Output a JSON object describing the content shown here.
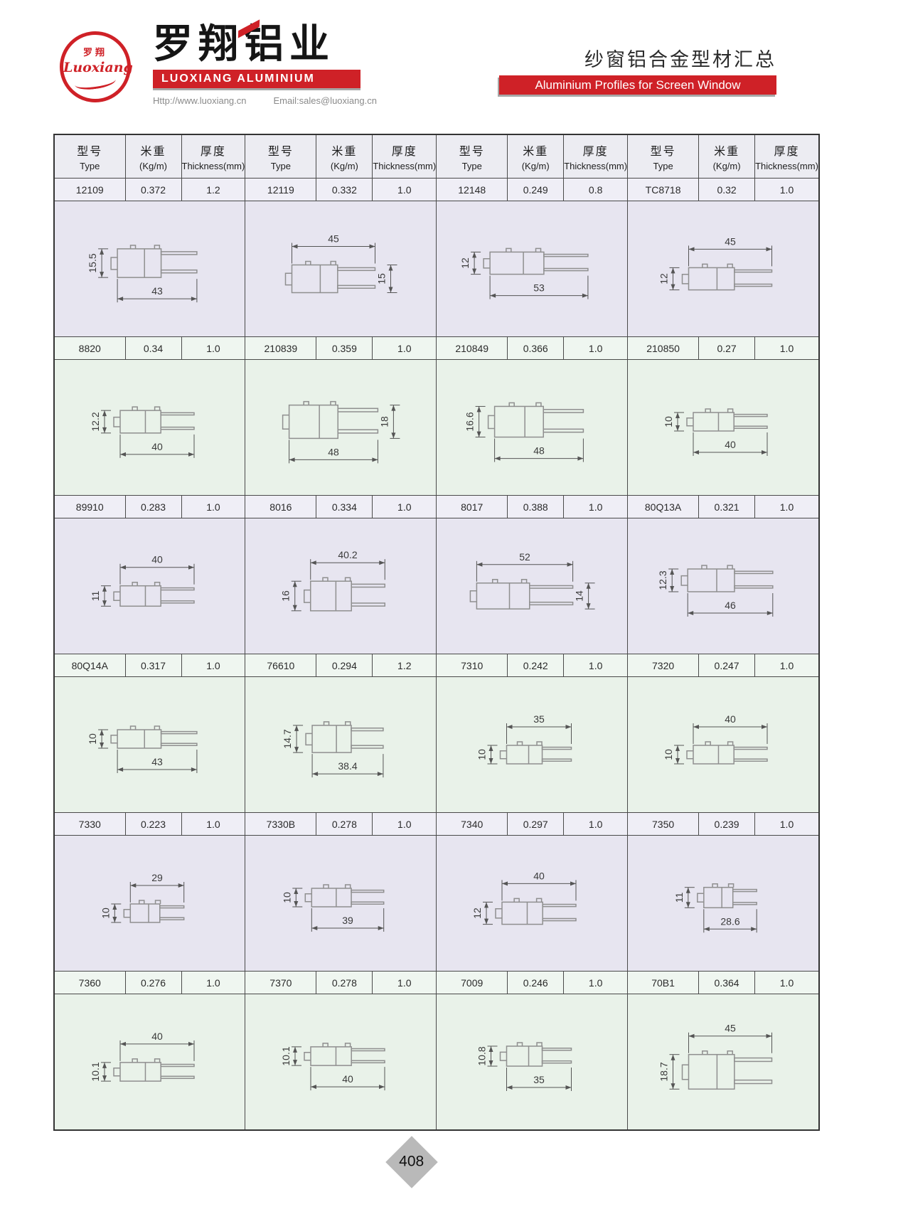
{
  "header": {
    "logo_cn": "罗翔",
    "logo_script": "Luoxiang",
    "company_cn": "罗翔铝业",
    "company_en": "LUOXIANG ALUMINIUM",
    "website": "Http://www.luoxiang.cn",
    "email": "Email:sales@luoxiang.cn",
    "page_title_cn": "纱窗铝合金型材汇总",
    "page_title_en": "Aluminium Profiles for Screen Window"
  },
  "table": {
    "column_headers": [
      {
        "cn": "型号",
        "en": "Type"
      },
      {
        "cn": "米重",
        "en": "(Kg/m)"
      },
      {
        "cn": "厚度",
        "en": "Thickness(mm)"
      }
    ],
    "rows": [
      {
        "tint": "lavender",
        "profiles": [
          {
            "type": "12109",
            "weight": "0.372",
            "thickness": "1.2",
            "dims": {
              "w": {
                "v": "43",
                "pos": "bottom"
              },
              "h": {
                "v": "15.5",
                "pos": "left"
              }
            }
          },
          {
            "type": "12119",
            "weight": "0.332",
            "thickness": "1.0",
            "dims": {
              "w": {
                "v": "45",
                "pos": "top"
              },
              "h": {
                "v": "15",
                "pos": "right"
              }
            }
          },
          {
            "type": "12148",
            "weight": "0.249",
            "thickness": "0.8",
            "dims": {
              "w": {
                "v": "53",
                "pos": "bottom"
              },
              "h": {
                "v": "12",
                "pos": "left"
              }
            }
          },
          {
            "type": "TC8718",
            "weight": "0.32",
            "thickness": "1.0",
            "dims": {
              "w": {
                "v": "45",
                "pos": "top"
              },
              "h": {
                "v": "12",
                "pos": "left"
              }
            }
          }
        ]
      },
      {
        "tint": "green",
        "profiles": [
          {
            "type": "8820",
            "weight": "0.34",
            "thickness": "1.0",
            "dims": {
              "w": {
                "v": "40",
                "pos": "bottom"
              },
              "h": {
                "v": "12.2",
                "pos": "left"
              }
            }
          },
          {
            "type": "210839",
            "weight": "0.359",
            "thickness": "1.0",
            "dims": {
              "w": {
                "v": "48",
                "pos": "bottom"
              },
              "h": {
                "v": "18",
                "pos": "right"
              }
            }
          },
          {
            "type": "210849",
            "weight": "0.366",
            "thickness": "1.0",
            "dims": {
              "w": {
                "v": "48",
                "pos": "bottom"
              },
              "h": {
                "v": "16.6",
                "pos": "left"
              }
            }
          },
          {
            "type": "210850",
            "weight": "0.27",
            "thickness": "1.0",
            "dims": {
              "w": {
                "v": "40",
                "pos": "bottom"
              },
              "h": {
                "v": "10",
                "pos": "left"
              }
            }
          }
        ]
      },
      {
        "tint": "lavender",
        "profiles": [
          {
            "type": "89910",
            "weight": "0.283",
            "thickness": "1.0",
            "dims": {
              "w": {
                "v": "40",
                "pos": "top"
              },
              "h": {
                "v": "11",
                "pos": "left"
              }
            }
          },
          {
            "type": "8016",
            "weight": "0.334",
            "thickness": "1.0",
            "dims": {
              "w": {
                "v": "40.2",
                "pos": "top"
              },
              "h": {
                "v": "16",
                "pos": "left"
              }
            }
          },
          {
            "type": "8017",
            "weight": "0.388",
            "thickness": "1.0",
            "dims": {
              "w": {
                "v": "52",
                "pos": "top"
              },
              "h": {
                "v": "14",
                "pos": "right"
              }
            }
          },
          {
            "type": "80Q13A",
            "weight": "0.321",
            "thickness": "1.0",
            "dims": {
              "w": {
                "v": "46",
                "pos": "bottom"
              },
              "h": {
                "v": "12.3",
                "pos": "left"
              }
            }
          }
        ]
      },
      {
        "tint": "green",
        "profiles": [
          {
            "type": "80Q14A",
            "weight": "0.317",
            "thickness": "1.0",
            "dims": {
              "w": {
                "v": "43",
                "pos": "bottom"
              },
              "h": {
                "v": "10",
                "pos": "left"
              }
            }
          },
          {
            "type": "76610",
            "weight": "0.294",
            "thickness": "1.2",
            "dims": {
              "w": {
                "v": "38.4",
                "pos": "bottom"
              },
              "h": {
                "v": "14.7",
                "pos": "left"
              }
            }
          },
          {
            "type": "7310",
            "weight": "0.242",
            "thickness": "1.0",
            "dims": {
              "w": {
                "v": "35",
                "pos": "top"
              },
              "h": {
                "v": "10",
                "pos": "left"
              }
            }
          },
          {
            "type": "7320",
            "weight": "0.247",
            "thickness": "1.0",
            "dims": {
              "w": {
                "v": "40",
                "pos": "top"
              },
              "h": {
                "v": "10",
                "pos": "left"
              }
            }
          }
        ]
      },
      {
        "tint": "lavender",
        "profiles": [
          {
            "type": "7330",
            "weight": "0.223",
            "thickness": "1.0",
            "dims": {
              "w": {
                "v": "29",
                "pos": "top"
              },
              "h": {
                "v": "10",
                "pos": "left"
              }
            }
          },
          {
            "type": "7330B",
            "weight": "0.278",
            "thickness": "1.0",
            "dims": {
              "w": {
                "v": "39",
                "pos": "bottom"
              },
              "h": {
                "v": "10",
                "pos": "left"
              }
            }
          },
          {
            "type": "7340",
            "weight": "0.297",
            "thickness": "1.0",
            "dims": {
              "w": {
                "v": "40",
                "pos": "top"
              },
              "h": {
                "v": "12",
                "pos": "left"
              }
            }
          },
          {
            "type": "7350",
            "weight": "0.239",
            "thickness": "1.0",
            "dims": {
              "w": {
                "v": "28.6",
                "pos": "bottom"
              },
              "h": {
                "v": "11",
                "pos": "left"
              }
            }
          }
        ]
      },
      {
        "tint": "green",
        "profiles": [
          {
            "type": "7360",
            "weight": "0.276",
            "thickness": "1.0",
            "dims": {
              "w": {
                "v": "40",
                "pos": "top"
              },
              "h": {
                "v": "10.1",
                "pos": "left"
              }
            }
          },
          {
            "type": "7370",
            "weight": "0.278",
            "thickness": "1.0",
            "dims": {
              "w": {
                "v": "40",
                "pos": "bottom"
              },
              "h": {
                "v": "10.1",
                "pos": "left"
              }
            }
          },
          {
            "type": "7009",
            "weight": "0.246",
            "thickness": "1.0",
            "dims": {
              "w": {
                "v": "35",
                "pos": "bottom"
              },
              "h": {
                "v": "10.8",
                "pos": "left"
              }
            }
          },
          {
            "type": "70B1",
            "weight": "0.364",
            "thickness": "1.0",
            "dims": {
              "w": {
                "v": "45",
                "pos": "top"
              },
              "h": {
                "v": "18.7",
                "pos": "left"
              }
            }
          }
        ]
      }
    ]
  },
  "footer": {
    "page_number": "408"
  },
  "colors": {
    "brand_red": "#cf2127",
    "banner_shadow": "#a6a6a6",
    "header_bg": "#ececf2",
    "tint_lavender_value": "#efeef6",
    "tint_lavender_drawing": "#e7e5f0",
    "tint_green_value": "#eff6f0",
    "tint_green_drawing": "#e9f2e9",
    "drawing_stroke": "#8f8f8f",
    "dim_line": "#555555",
    "dim_text": "#3a3a3a",
    "diamond_gray": "#b9b9b9"
  }
}
